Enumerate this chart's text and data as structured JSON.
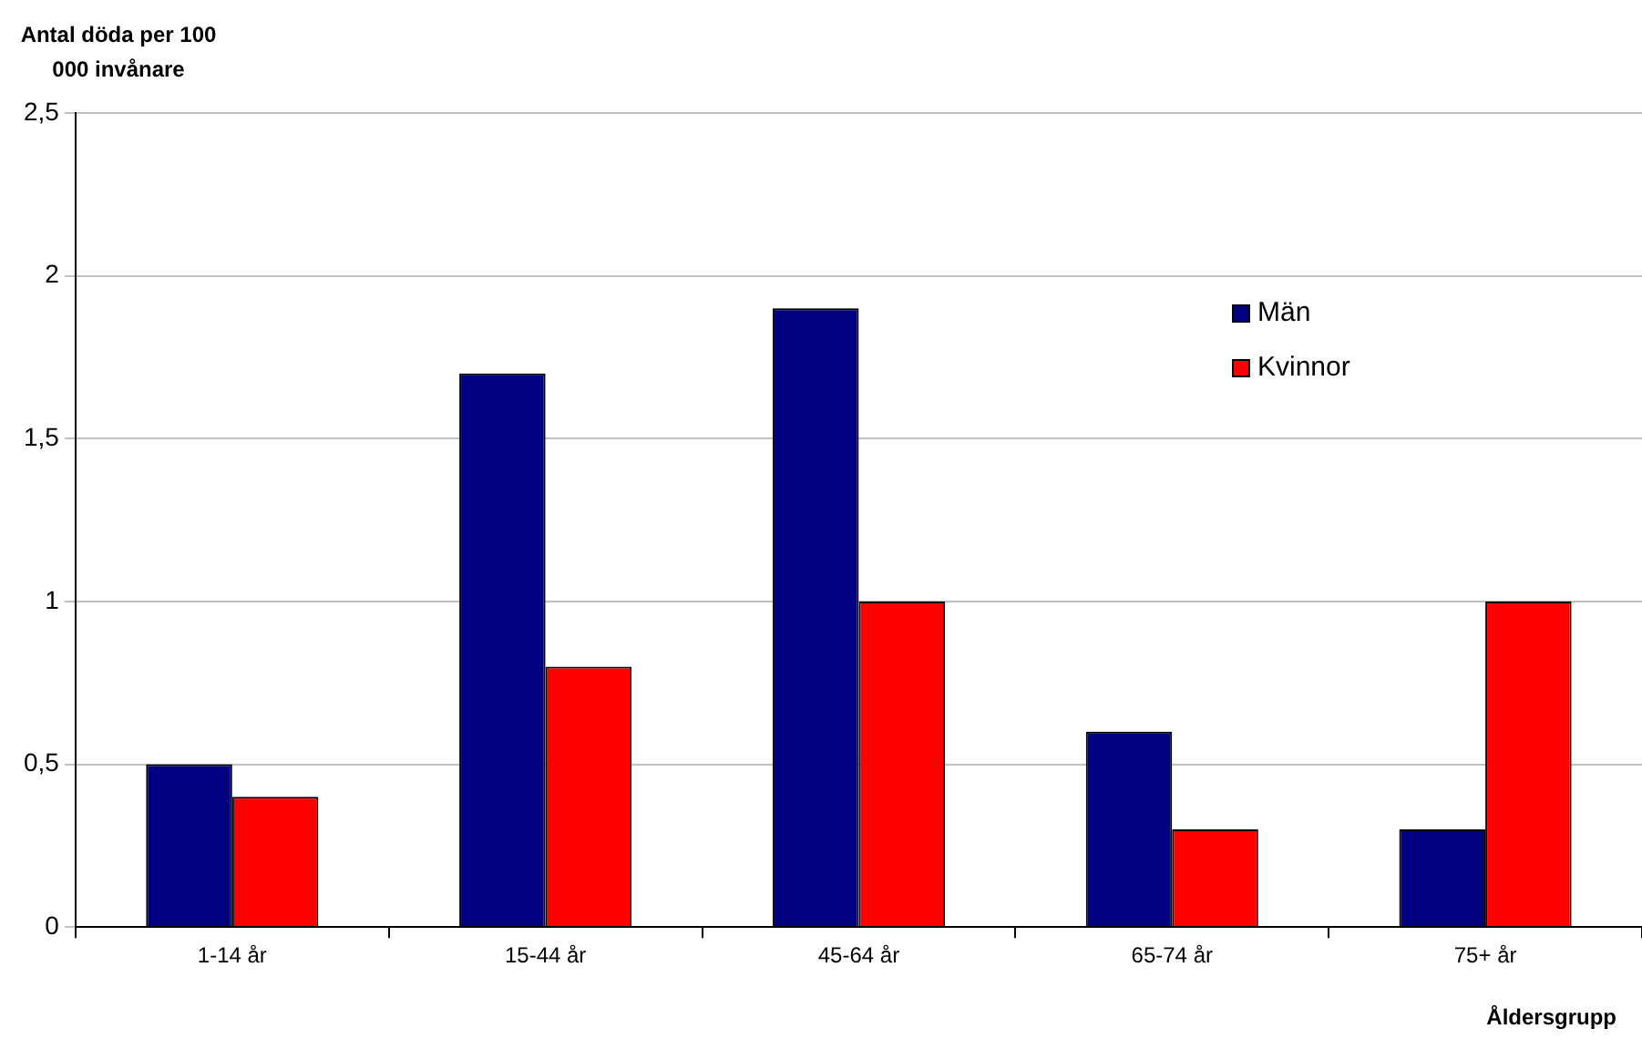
{
  "chart_data": {
    "type": "bar",
    "ylabel": "Antal döda per 100 000 invånare",
    "xlabel": "Åldersgrupp",
    "categories": [
      "1-14 år",
      "15-44 år",
      "45-64 år",
      "65-74 år",
      "75+ år"
    ],
    "series": [
      {
        "name": "Män",
        "color": "#000080",
        "values": [
          0.5,
          1.7,
          1.9,
          0.6,
          0.3
        ]
      },
      {
        "name": "Kvinnor",
        "color": "#ff0000",
        "values": [
          0.4,
          0.8,
          1.0,
          0.3,
          1.0
        ]
      }
    ],
    "ylim": [
      0,
      2.5
    ],
    "yticks": [
      0,
      {
        "value": 0.5,
        "label": "0,5"
      },
      1,
      {
        "value": 1.5,
        "label": "1,5"
      },
      2,
      {
        "value": 2.5,
        "label": "2,5"
      }
    ],
    "grid": "y",
    "legend": "top right"
  }
}
